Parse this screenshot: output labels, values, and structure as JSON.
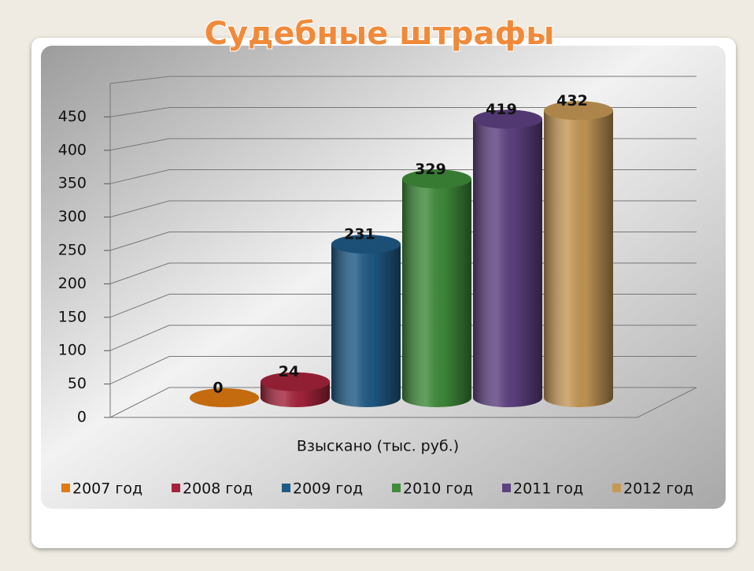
{
  "chart_data": {
    "type": "bar",
    "title": "Судебные штрафы",
    "categories": [
      "Взыскано (тыс. руб.)"
    ],
    "series": [
      {
        "name": "2007 год",
        "color": "#e07a12",
        "values": [
          0
        ]
      },
      {
        "name": "2008 год",
        "color": "#a5243c",
        "values": [
          24
        ]
      },
      {
        "name": "2009 год",
        "color": "#1f5a86",
        "values": [
          231
        ]
      },
      {
        "name": "2010 год",
        "color": "#3f8b3a",
        "values": [
          329
        ]
      },
      {
        "name": "2011 год",
        "color": "#5d4080",
        "values": [
          419
        ]
      },
      {
        "name": "2012 год",
        "color": "#c59855",
        "values": [
          432
        ]
      }
    ],
    "ylim": [
      0,
      500
    ],
    "yticks": [
      0,
      50,
      100,
      150,
      200,
      250,
      300,
      350,
      400,
      450
    ],
    "grid": true,
    "legend": "bottom"
  }
}
